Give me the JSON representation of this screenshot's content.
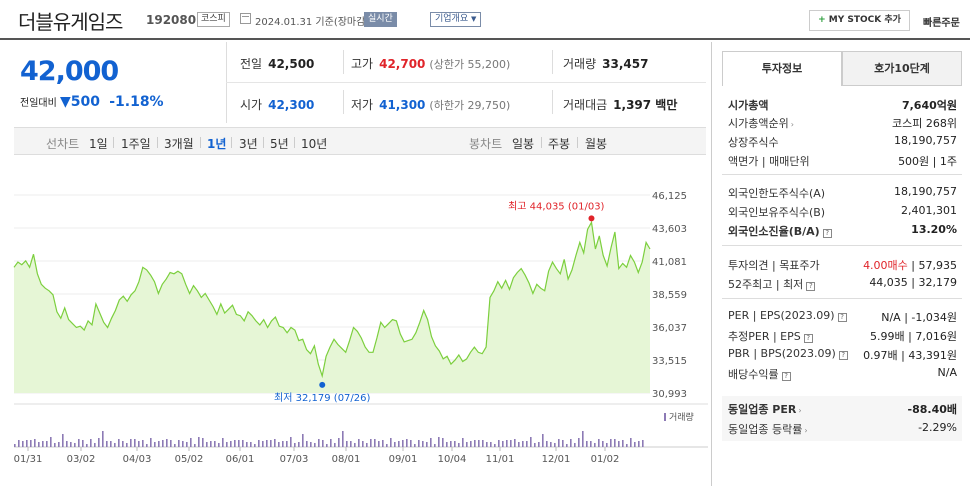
{
  "header": {
    "company": "더블유게임즈",
    "code": "192080",
    "market": "코스피",
    "date": "2024.01.31 기준(장마감)",
    "live_label": "실시간",
    "corp_info_label": "기업개요",
    "mystock_label": "MY STOCK 추가",
    "quick_order_label": "빠른주문"
  },
  "quote": {
    "price": "42,000",
    "change_label": "전일대비",
    "change_value": "500",
    "change_pct": "-1.18%",
    "prev_label": "전일",
    "prev_value": "42,500",
    "high_label": "고가",
    "high_value": "42,700",
    "upper_limit": "(상한가 55,200)",
    "volume_label": "거래량",
    "volume_value": "33,457",
    "open_label": "시가",
    "open_value": "42,300",
    "low_label": "저가",
    "low_value": "41,300",
    "lower_limit": "(하한가 29,750)",
    "amount_label": "거래대금",
    "amount_value": "1,397 백만"
  },
  "chart_tabs": {
    "line_label": "선차트",
    "periods": [
      "1일",
      "1주일",
      "3개월",
      "1년",
      "3년",
      "5년",
      "10년"
    ],
    "selected_period": "1년",
    "candle_label": "봉차트",
    "candle_periods": [
      "일봉",
      "주봉",
      "월봉"
    ]
  },
  "chart_data": {
    "type": "area",
    "title": "",
    "xlabel": "",
    "ylabel": "",
    "ylim": [
      30993,
      46125
    ],
    "yticks": [
      "46,125",
      "43,603",
      "41,081",
      "38,559",
      "36,037",
      "33,515",
      "30,993"
    ],
    "xticks": [
      "01/31",
      "03/02",
      "04/03",
      "05/02",
      "06/01",
      "07/03",
      "08/01",
      "09/01",
      "10/04",
      "11/01",
      "12/01",
      "01/02"
    ],
    "max_label": "최고 44,035 (01/03)",
    "min_label": "최저 32,179 (07/26)",
    "volume_label": "거래량",
    "line_color": "#7ccf3e",
    "fill_color": "#e6f6d6",
    "series": [
      {
        "values": [
          40600,
          41000,
          40800,
          41100,
          40600,
          41600,
          40100,
          39300,
          39000,
          38800,
          38500,
          37200,
          36700,
          37500,
          36600,
          36300,
          36000,
          36100,
          35800,
          36500,
          36200,
          37800,
          37100,
          36400,
          36000,
          36700,
          37300,
          38100,
          38400,
          38000,
          38500,
          38800,
          39500,
          40600,
          40400,
          40000,
          39500,
          38600,
          39300,
          39700,
          40200,
          40100,
          40300,
          40100,
          39300,
          38600,
          39200,
          38800,
          38300,
          38600,
          38100,
          37600,
          37000,
          37800,
          37100,
          37400,
          37700,
          37000,
          36900,
          36500,
          37200,
          36900,
          36500,
          36200,
          36600,
          36000,
          36500,
          36800,
          36100,
          36000,
          35600,
          36000,
          35800,
          35000,
          35100,
          34300,
          34000,
          34600,
          33200,
          32300,
          33800,
          34500,
          35100,
          34700,
          34400,
          34100,
          35000,
          36000,
          35700,
          35200,
          34500,
          34100,
          34100,
          35200,
          36400,
          36000,
          36300,
          36600,
          36500,
          35500,
          34900,
          35000,
          35100,
          35600,
          36400,
          37300,
          36600,
          35300,
          34600,
          34200,
          33600,
          33800,
          33200,
          33500,
          33900,
          33400,
          33600,
          34100,
          34500,
          34100,
          34000,
          34500,
          38300,
          38800,
          39500,
          39000,
          39600,
          38900,
          39800,
          40200,
          40500,
          40000,
          39400,
          38600,
          39300,
          39000,
          38800,
          40300,
          41000,
          40500,
          40100,
          41200,
          39700,
          40400,
          41500,
          42500,
          41700,
          43500,
          44035,
          42000,
          43000,
          41500,
          40700,
          42100,
          43300,
          40500,
          40900,
          40600,
          41500,
          41000,
          40200,
          41000,
          42500,
          42000
        ]
      }
    ]
  },
  "side": {
    "tab_invest": "투자정보",
    "tab_hoga": "호가10단계",
    "market_cap_label": "시가총액",
    "market_cap_value": "7,640억원",
    "cap_rank_label": "시가총액순위",
    "cap_rank_value": "코스피 268위",
    "shares_label": "상장주식수",
    "shares_value": "18,190,757",
    "par_label": "액면가",
    "unit_label": "매매단위",
    "par_unit_value": "500원 | 1주",
    "foreign_limit_label": "외국인한도주식수(A)",
    "foreign_limit_value": "18,190,757",
    "foreign_hold_label": "외국인보유주식수(B)",
    "foreign_hold_value": "2,401,301",
    "foreign_ratio_label": "외국인소진율(B/A)",
    "foreign_ratio_value": "13.20%",
    "opinion_label": "투자의견",
    "target_label": "목표주가",
    "opinion_value": "4.00매수",
    "target_value": "57,935",
    "w52_high_label": "52주최고",
    "w52_low_label": "최저",
    "w52_value": "44,035 | 32,179",
    "per_label": "PER",
    "eps_label": "EPS(2023.09)",
    "per_value": "N/A",
    "eps_value": "-1,034원",
    "est_per_label": "추정PER",
    "est_eps_label": "EPS",
    "est_per_value": "5.99배",
    "est_eps_value": "7,016원",
    "pbr_label": "PBR",
    "bps_label": "BPS(2023.09)",
    "pbr_value": "0.97배",
    "bps_value": "43,391원",
    "div_label": "배당수익률",
    "div_value": "N/A",
    "peer_per_label": "동일업종 PER",
    "peer_per_value": "-88.40배",
    "peer_rate_label": "동일업종 등락률",
    "peer_rate_value": "-2.29%"
  }
}
